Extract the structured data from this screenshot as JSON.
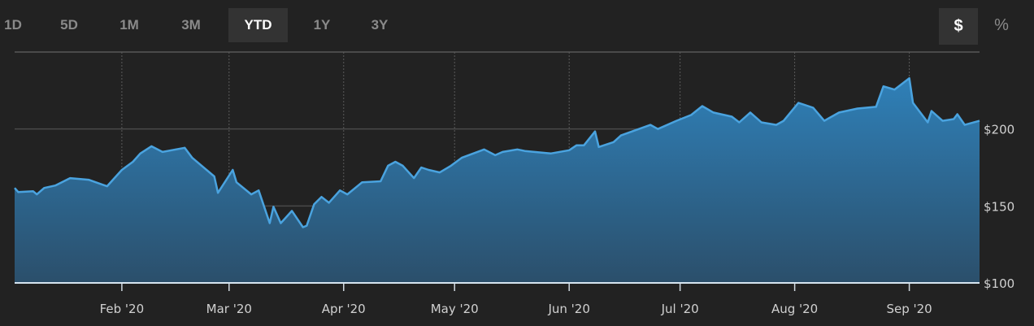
{
  "range_buttons": [
    {
      "label": "1D",
      "active": false
    },
    {
      "label": "5D",
      "active": false
    },
    {
      "label": "1M",
      "active": false
    },
    {
      "label": "3M",
      "active": false
    },
    {
      "label": "YTD",
      "active": true
    },
    {
      "label": "1Y",
      "active": false
    },
    {
      "label": "3Y",
      "active": false
    }
  ],
  "mode_buttons": [
    {
      "label": "$",
      "active": true
    },
    {
      "label": "%",
      "active": false
    }
  ],
  "colors": {
    "line": "#4aa3df",
    "fill_top": "#2f80b8",
    "fill_bottom": "#2b4f6b",
    "background": "#222222"
  },
  "chart_data": {
    "type": "area",
    "title": "",
    "xlabel": "",
    "ylabel": "",
    "xlim": [
      "2020-01-03",
      "2020-09-20"
    ],
    "ylim": [
      100,
      250
    ],
    "grid": true,
    "x_ticks": [
      {
        "date": "2020-02-01",
        "label": "Feb '20"
      },
      {
        "date": "2020-03-01",
        "label": "Mar '20"
      },
      {
        "date": "2020-04-01",
        "label": "Apr '20"
      },
      {
        "date": "2020-05-01",
        "label": "May '20"
      },
      {
        "date": "2020-06-01",
        "label": "Jun '20"
      },
      {
        "date": "2020-07-01",
        "label": "Jul '20"
      },
      {
        "date": "2020-08-01",
        "label": "Aug '20"
      },
      {
        "date": "2020-09-01",
        "label": "Sep '20"
      }
    ],
    "y_ticks": [
      {
        "value": 100,
        "label": "$100"
      },
      {
        "value": 150,
        "label": "$150"
      },
      {
        "value": 200,
        "label": "$200"
      }
    ],
    "series": [
      {
        "points": [
          [
            "2020-01-03",
            161.7
          ],
          [
            "2020-01-04",
            159.0
          ],
          [
            "2020-01-08",
            159.6
          ],
          [
            "2020-01-09",
            157.5
          ],
          [
            "2020-01-11",
            161.7
          ],
          [
            "2020-01-14",
            163.3
          ],
          [
            "2020-01-18",
            168.1
          ],
          [
            "2020-01-23",
            167.0
          ],
          [
            "2020-01-28",
            162.8
          ],
          [
            "2020-02-01",
            173.4
          ],
          [
            "2020-02-04",
            178.7
          ],
          [
            "2020-02-06",
            184.1
          ],
          [
            "2020-02-09",
            188.8
          ],
          [
            "2020-02-12",
            185.1
          ],
          [
            "2020-02-18",
            187.8
          ],
          [
            "2020-02-20",
            181.4
          ],
          [
            "2020-02-26",
            169.2
          ],
          [
            "2020-02-27",
            158.5
          ],
          [
            "2020-03-02",
            173.4
          ],
          [
            "2020-03-03",
            165.4
          ],
          [
            "2020-03-07",
            157.5
          ],
          [
            "2020-03-09",
            160.1
          ],
          [
            "2020-03-12",
            138.8
          ],
          [
            "2020-03-13",
            149.5
          ],
          [
            "2020-03-15",
            138.8
          ],
          [
            "2020-03-18",
            146.8
          ],
          [
            "2020-03-21",
            136.2
          ],
          [
            "2020-03-22",
            137.2
          ],
          [
            "2020-03-24",
            151.1
          ],
          [
            "2020-03-26",
            155.9
          ],
          [
            "2020-03-28",
            152.1
          ],
          [
            "2020-03-31",
            160.1
          ],
          [
            "2020-04-02",
            157.5
          ],
          [
            "2020-04-06",
            165.4
          ],
          [
            "2020-04-11",
            166.0
          ],
          [
            "2020-04-13",
            176.1
          ],
          [
            "2020-04-15",
            178.7
          ],
          [
            "2020-04-17",
            176.1
          ],
          [
            "2020-04-20",
            168.1
          ],
          [
            "2020-04-22",
            175.0
          ],
          [
            "2020-04-24",
            173.4
          ],
          [
            "2020-04-27",
            171.8
          ],
          [
            "2020-04-30",
            176.1
          ],
          [
            "2020-05-03",
            181.4
          ],
          [
            "2020-05-09",
            186.7
          ],
          [
            "2020-05-12",
            183.0
          ],
          [
            "2020-05-14",
            185.1
          ],
          [
            "2020-05-18",
            186.7
          ],
          [
            "2020-05-20",
            185.7
          ],
          [
            "2020-05-27",
            184.1
          ],
          [
            "2020-06-01",
            186.2
          ],
          [
            "2020-06-03",
            189.4
          ],
          [
            "2020-06-05",
            189.4
          ],
          [
            "2020-06-08",
            198.4
          ],
          [
            "2020-06-09",
            188.3
          ],
          [
            "2020-06-13",
            191.5
          ],
          [
            "2020-06-15",
            195.8
          ],
          [
            "2020-06-18",
            198.4
          ],
          [
            "2020-06-23",
            202.7
          ],
          [
            "2020-06-25",
            200.0
          ],
          [
            "2020-06-30",
            205.3
          ],
          [
            "2020-07-04",
            209.1
          ],
          [
            "2020-07-07",
            214.9
          ],
          [
            "2020-07-10",
            210.7
          ],
          [
            "2020-07-15",
            208.0
          ],
          [
            "2020-07-17",
            204.3
          ],
          [
            "2020-07-20",
            210.7
          ],
          [
            "2020-07-23",
            204.3
          ],
          [
            "2020-07-27",
            202.7
          ],
          [
            "2020-07-29",
            205.3
          ],
          [
            "2020-08-02",
            217.0
          ],
          [
            "2020-08-06",
            213.8
          ],
          [
            "2020-08-09",
            205.3
          ],
          [
            "2020-08-13",
            210.7
          ],
          [
            "2020-08-18",
            213.3
          ],
          [
            "2020-08-23",
            214.4
          ],
          [
            "2020-08-25",
            227.7
          ],
          [
            "2020-08-28",
            225.6
          ],
          [
            "2020-09-01",
            233.0
          ],
          [
            "2020-09-02",
            217.0
          ],
          [
            "2020-09-06",
            204.3
          ],
          [
            "2020-09-07",
            211.7
          ],
          [
            "2020-09-10",
            205.3
          ],
          [
            "2020-09-13",
            206.4
          ],
          [
            "2020-09-14",
            209.6
          ],
          [
            "2020-09-16",
            202.7
          ],
          [
            "2020-09-20",
            205.3
          ]
        ]
      }
    ]
  }
}
